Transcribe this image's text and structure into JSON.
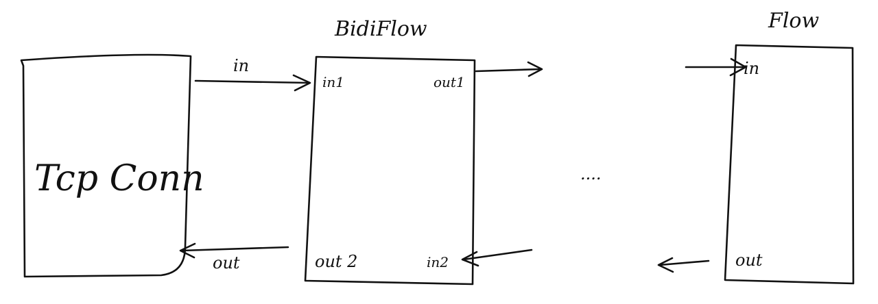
{
  "tcp": {
    "label": "Tcp Conn"
  },
  "bidi": {
    "title": "BidiFlow",
    "in1": "in1",
    "out1": "out1",
    "out2": "out 2",
    "in2": "in2"
  },
  "flow": {
    "title": "Flow",
    "in": "in",
    "out": "out"
  },
  "arrows": {
    "in_label": "in",
    "out_label": "out"
  },
  "ellipsis": "...."
}
